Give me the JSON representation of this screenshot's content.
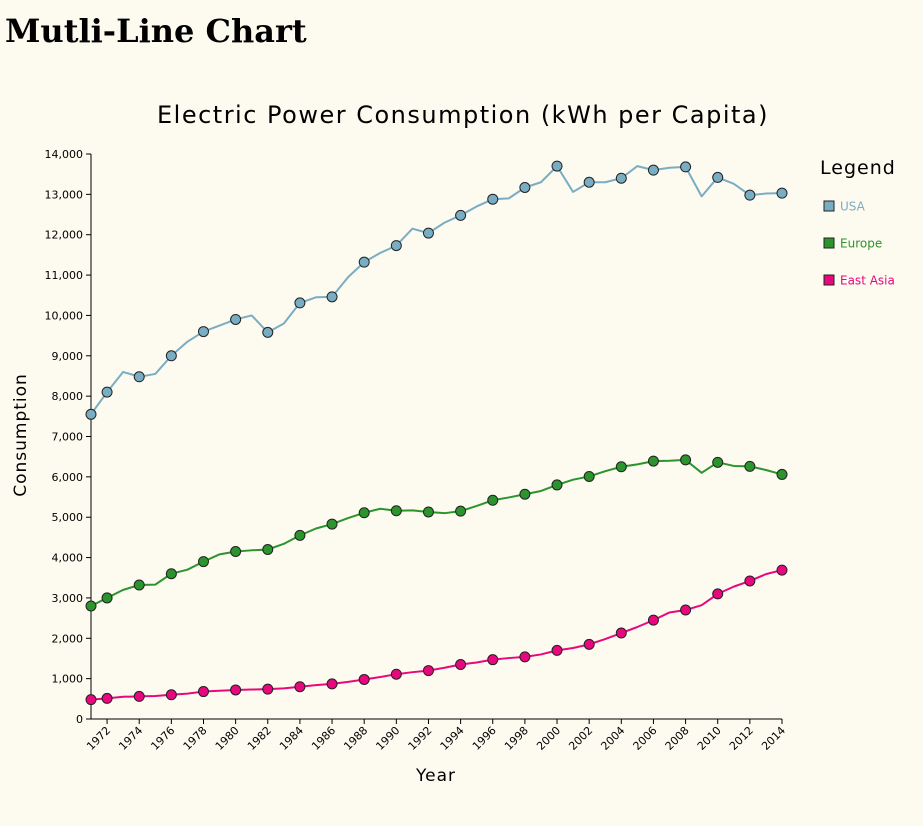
{
  "page": {
    "title": "Mutli-Line Chart"
  },
  "colors": {
    "background": "#fdfaf0",
    "usa": "#79adc3",
    "europe": "#2c942c",
    "east_asia": "#e8087e",
    "axis": "#000000"
  },
  "chart_data": {
    "type": "line",
    "title": "Electric Power Consumption (kWh per Capita)",
    "xlabel": "Year",
    "ylabel": "Consumption",
    "xlim": [
      1971,
      2014
    ],
    "ylim": [
      0,
      14000
    ],
    "x_ticks": [
      1972,
      1974,
      1976,
      1978,
      1980,
      1982,
      1984,
      1986,
      1988,
      1990,
      1992,
      1994,
      1996,
      1998,
      2000,
      2002,
      2004,
      2006,
      2008,
      2010,
      2012,
      2014
    ],
    "y_ticks": [
      0,
      1000,
      2000,
      3000,
      4000,
      5000,
      6000,
      7000,
      8000,
      9000,
      10000,
      11000,
      12000,
      13000,
      14000
    ],
    "y_tick_labels": [
      "0",
      "1,000",
      "2,000",
      "3,000",
      "4,000",
      "5,000",
      "6,000",
      "7,000",
      "8,000",
      "9,000",
      "10,000",
      "11,000",
      "12,000",
      "13,000",
      "14,000"
    ],
    "grid": false,
    "legend": {
      "title": "Legend",
      "placement": "right",
      "entries": [
        "USA",
        "Europe",
        "East Asia"
      ]
    },
    "x": [
      1971,
      1972,
      1973,
      1974,
      1975,
      1976,
      1977,
      1978,
      1979,
      1980,
      1981,
      1982,
      1983,
      1984,
      1985,
      1986,
      1987,
      1988,
      1989,
      1990,
      1991,
      1992,
      1993,
      1994,
      1995,
      1996,
      1997,
      1998,
      1999,
      2000,
      2001,
      2002,
      2003,
      2004,
      2005,
      2006,
      2007,
      2008,
      2009,
      2010,
      2011,
      2012,
      2013,
      2014
    ],
    "marker_x": [
      1971,
      1972,
      1974,
      1976,
      1978,
      1980,
      1982,
      1984,
      1986,
      1988,
      1990,
      1992,
      1994,
      1996,
      1998,
      2000,
      2002,
      2004,
      2006,
      2008,
      2010,
      2012,
      2014
    ],
    "series": [
      {
        "name": "USA",
        "color": "#79adc3",
        "values": [
          7550,
          8100,
          8600,
          8480,
          8550,
          9000,
          9350,
          9600,
          9750,
          9900,
          10000,
          9580,
          9800,
          10310,
          10450,
          10460,
          10950,
          11320,
          11550,
          11730,
          12150,
          12040,
          12300,
          12480,
          12700,
          12880,
          12900,
          13170,
          13300,
          13700,
          13060,
          13300,
          13300,
          13400,
          13700,
          13600,
          13660,
          13680,
          12950,
          13420,
          13260,
          12980,
          13020,
          13030
        ]
      },
      {
        "name": "Europe",
        "color": "#2c942c",
        "values": [
          2800,
          3000,
          3200,
          3320,
          3330,
          3600,
          3700,
          3900,
          4080,
          4150,
          4180,
          4200,
          4340,
          4550,
          4720,
          4830,
          4980,
          5110,
          5210,
          5160,
          5170,
          5130,
          5100,
          5150,
          5280,
          5420,
          5490,
          5570,
          5650,
          5800,
          5930,
          6010,
          6140,
          6250,
          6310,
          6390,
          6400,
          6420,
          6100,
          6360,
          6270,
          6260,
          6170,
          6060
        ]
      },
      {
        "name": "East Asia",
        "color": "#e8087e",
        "values": [
          480,
          510,
          550,
          560,
          570,
          600,
          630,
          680,
          700,
          720,
          730,
          740,
          760,
          800,
          840,
          870,
          920,
          980,
          1040,
          1110,
          1160,
          1200,
          1270,
          1350,
          1400,
          1470,
          1510,
          1540,
          1600,
          1700,
          1760,
          1850,
          1980,
          2130,
          2280,
          2450,
          2640,
          2700,
          2820,
          3100,
          3280,
          3420,
          3590,
          3690
        ]
      }
    ]
  }
}
